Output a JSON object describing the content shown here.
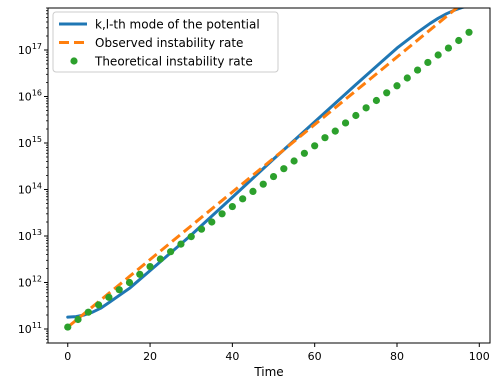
{
  "chart_data": {
    "type": "line",
    "xlabel": "Time",
    "ylabel": "",
    "xlim": [
      -4.8,
      102.6
    ],
    "ylim": [
      50000000000.0,
      8e+17
    ],
    "yscale": "log",
    "grid": false,
    "legend_position": "top-left",
    "xticks": [
      0,
      20,
      40,
      60,
      80,
      100
    ],
    "xtick_labels": [
      "0",
      "20",
      "40",
      "60",
      "80",
      "100"
    ],
    "yticks": [
      100000000000.0,
      1000000000000.0,
      10000000000000.0,
      100000000000000.0,
      1000000000000000.0,
      1e+16,
      1e+17
    ],
    "ytick_labels": [
      {
        "base": "10",
        "exp": "11"
      },
      {
        "base": "10",
        "exp": "12"
      },
      {
        "base": "10",
        "exp": "13"
      },
      {
        "base": "10",
        "exp": "14"
      },
      {
        "base": "10",
        "exp": "15"
      },
      {
        "base": "10",
        "exp": "16"
      },
      {
        "base": "10",
        "exp": "17"
      }
    ],
    "series": [
      {
        "name": "k,l-th mode of the potential",
        "style": "solid",
        "color": "#1f77b4",
        "x": [
          0,
          2,
          4,
          6,
          8,
          10,
          15,
          20,
          30,
          40,
          50,
          60,
          70,
          80,
          85,
          88,
          90,
          92,
          94,
          96,
          98,
          100
        ],
        "y": [
          180000000000.0,
          185000000000.0,
          200000000000.0,
          230000000000.0,
          280000000000.0,
          370000000000.0,
          750000000000.0,
          1800000000000.0,
          10500000000000.0,
          68000000000000.0,
          450000000000000.0,
          2850000000000000.0,
          1.8e+16,
          1.1e+17,
          2.4e+17,
          3.7e+17,
          4.8e+17,
          6e+17,
          7.2e+17,
          8.3e+17,
          8.9e+17,
          9e+17
        ]
      },
      {
        "name": "Observed instability rate",
        "style": "dashed",
        "color": "#ff7f0e",
        "x": [
          0,
          100
        ],
        "y": [
          110000000000.0,
          2e+18
        ]
      },
      {
        "name": "Theoretical instability rate",
        "style": "markers",
        "color": "#2ca02c",
        "x": [
          0,
          2.5,
          5,
          7.5,
          10,
          12.5,
          15,
          17.5,
          20,
          22.5,
          25,
          27.5,
          30,
          32.5,
          35,
          37.5,
          40,
          42.5,
          45,
          47.5,
          50,
          52.5,
          55,
          57.5,
          60,
          62.5,
          65,
          67.5,
          70,
          72.5,
          75,
          77.5,
          80,
          82.5,
          85,
          87.5,
          90,
          92.5,
          95,
          97.5
        ],
        "y": [
          110000000000.0,
          160000000000.0,
          230000000000.0,
          330000000000.0,
          480000000000.0,
          700000000000.0,
          1000000000000.0,
          1500000000000.0,
          2200000000000.0,
          3200000000000.0,
          4600000000000.0,
          6700000000000.0,
          9700000000000.0,
          14000000000000.0,
          20000000000000.0,
          30000000000000.0,
          43000000000000.0,
          63000000000000.0,
          91000000000000.0,
          130000000000000.0,
          190000000000000.0,
          280000000000000.0,
          410000000000000.0,
          600000000000000.0,
          870000000000000.0,
          1300000000000000.0,
          1800000000000000.0,
          2700000000000000.0,
          3900000000000000.0,
          5700000000000000.0,
          8200000000000000.0,
          1.2e+16,
          1.7e+16,
          2.5e+16,
          3.7e+16,
          5.4e+16,
          7.8e+16,
          1.1e+17,
          1.6e+17,
          2.4e+17
        ]
      }
    ]
  }
}
